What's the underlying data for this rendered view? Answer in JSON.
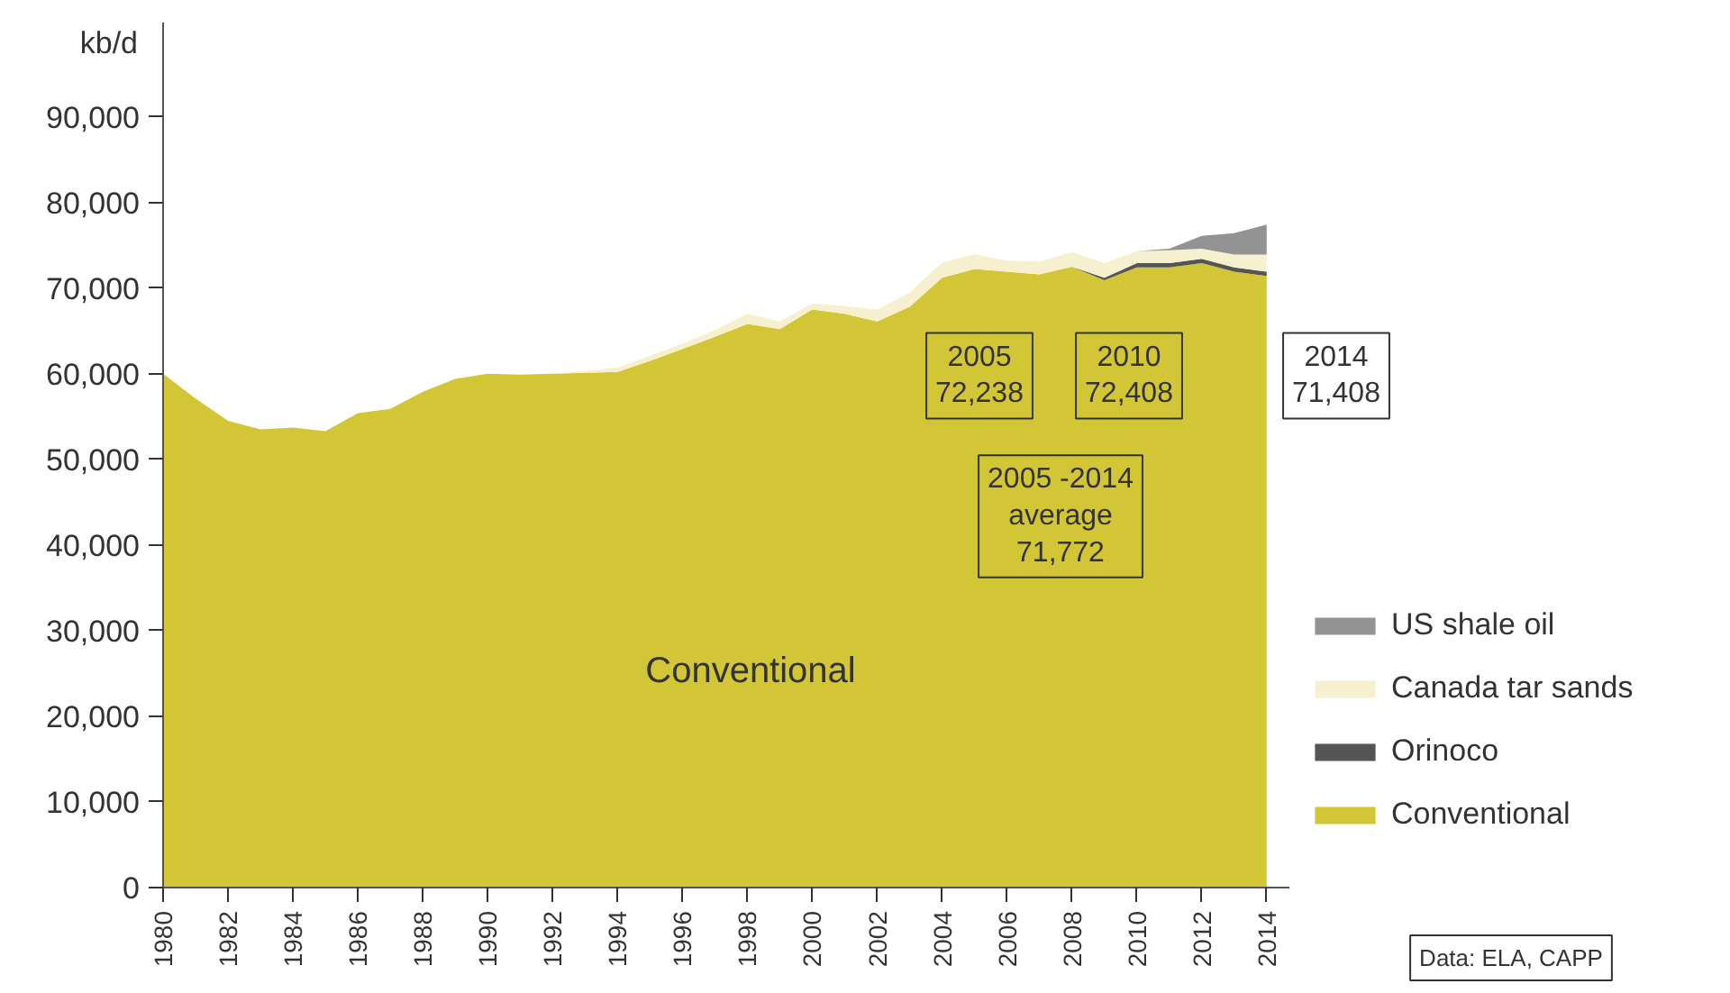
{
  "chart_data": {
    "type": "area",
    "stacked": true,
    "ylabel": "kb/d",
    "x": [
      1980,
      1981,
      1982,
      1983,
      1984,
      1985,
      1986,
      1987,
      1988,
      1989,
      1990,
      1991,
      1992,
      1993,
      1994,
      1995,
      1996,
      1997,
      1998,
      1999,
      2000,
      2001,
      2002,
      2003,
      2004,
      2005,
      2006,
      2007,
      2008,
      2009,
      2010,
      2011,
      2012,
      2013,
      2014
    ],
    "series": [
      {
        "name": "Conventional",
        "color": "#d2c637",
        "values": [
          60000,
          57100,
          54500,
          53500,
          53700,
          53300,
          55400,
          55900,
          57900,
          59400,
          60000,
          59900,
          60000,
          60100,
          60200,
          61500,
          62900,
          64300,
          65800,
          65200,
          67500,
          67000,
          66100,
          67800,
          71200,
          72238,
          71900,
          71600,
          72500,
          70900,
          72408,
          72400,
          72900,
          71900,
          71408
        ]
      },
      {
        "name": "Orinoco",
        "color": "#555555",
        "values": [
          0,
          0,
          0,
          0,
          0,
          0,
          0,
          0,
          0,
          0,
          0,
          0,
          0,
          0,
          0,
          0,
          0,
          0,
          0,
          0,
          0,
          0,
          0,
          0,
          0,
          0,
          0,
          0,
          0,
          300,
          500,
          500,
          500,
          500,
          500
        ]
      },
      {
        "name": "Canada tar sands",
        "color": "#f7f0cf",
        "values": [
          0,
          0,
          0,
          0,
          0,
          0,
          0,
          0,
          0,
          0,
          0,
          0,
          0,
          200,
          500,
          600,
          600,
          800,
          1200,
          900,
          700,
          900,
          1400,
          1700,
          1800,
          1700,
          1300,
          1500,
          1700,
          1700,
          1400,
          1500,
          1200,
          1500,
          2000
        ]
      },
      {
        "name": "US shale oil",
        "color": "#939393",
        "values": [
          0,
          0,
          0,
          0,
          0,
          0,
          0,
          0,
          0,
          0,
          0,
          0,
          0,
          0,
          0,
          0,
          0,
          0,
          0,
          0,
          0,
          0,
          0,
          0,
          0,
          0,
          0,
          0,
          0,
          0,
          0,
          200,
          1500,
          2500,
          3500
        ]
      }
    ],
    "xlim": [
      1980,
      2014.7
    ],
    "ylim": [
      0,
      101000
    ],
    "xticks": [
      1980,
      1982,
      1984,
      1986,
      1988,
      1990,
      1992,
      1994,
      1996,
      1998,
      2000,
      2002,
      2004,
      2006,
      2008,
      2010,
      2012,
      2014
    ],
    "yticks": [
      {
        "value": 0,
        "label": "0"
      },
      {
        "value": 10000,
        "label": "10,000"
      },
      {
        "value": 20000,
        "label": "20,000"
      },
      {
        "value": 30000,
        "label": "30,000"
      },
      {
        "value": 40000,
        "label": "40,000"
      },
      {
        "value": 50000,
        "label": "50,000"
      },
      {
        "value": 60000,
        "label": "60,000"
      },
      {
        "value": 70000,
        "label": "70,000"
      },
      {
        "value": 80000,
        "label": "80,000"
      },
      {
        "value": 90000,
        "label": "90,000"
      }
    ],
    "grid": false,
    "legend": "right",
    "annotations": [
      "Conventional",
      "2005\n72,238",
      "2010\n72,408",
      "2014\n71,408",
      "2005 -2014\naverage\n71,772",
      "Data: ELA, CAPP"
    ]
  }
}
